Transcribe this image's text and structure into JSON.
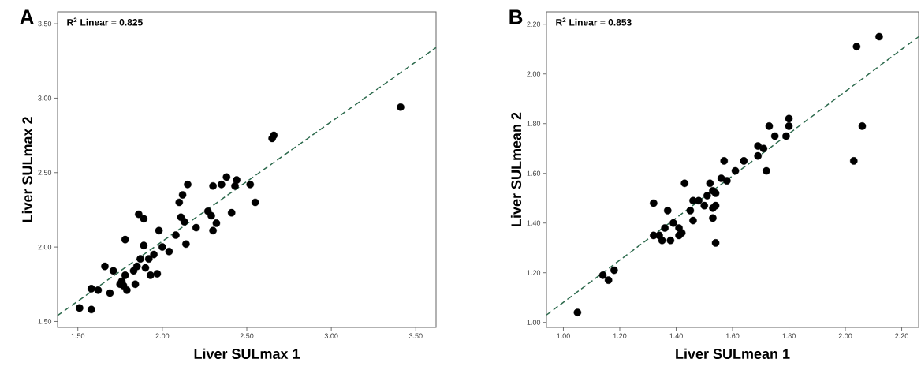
{
  "chart_data": [
    {
      "type": "scatter",
      "xlabel": "Liver  SULmax 1",
      "ylabel": "Liver  SULmax 2",
      "annotations": [
        "A",
        "R$^{2}$ Linear = 0.825"
      ],
      "xlim": [
        1.38,
        3.62
      ],
      "ylim": [
        1.46,
        3.58
      ],
      "xticks": [
        {
          "value": 1.5,
          "label": "1.50"
        },
        {
          "value": 2.0,
          "label": "2.00"
        },
        {
          "value": 2.5,
          "label": "2.50"
        },
        {
          "value": 3.0,
          "label": "3.00"
        },
        {
          "value": 3.5,
          "label": "3.50"
        }
      ],
      "yticks": [
        {
          "value": 1.5,
          "label": "1.50"
        },
        {
          "value": 2.0,
          "label": "2.00"
        },
        {
          "value": 2.5,
          "label": "2.50"
        },
        {
          "value": 3.0,
          "label": "3.00"
        },
        {
          "value": 3.5,
          "label": "3.50"
        }
      ],
      "series": [
        {
          "color": "#000000",
          "marker": "circle",
          "x": [
            1.51,
            1.58,
            1.58,
            1.62,
            1.66,
            1.69,
            1.71,
            1.75,
            1.76,
            1.77,
            1.78,
            1.78,
            1.79,
            1.83,
            1.84,
            1.85,
            1.86,
            1.87,
            1.89,
            1.89,
            1.9,
            1.92,
            1.93,
            1.95,
            1.97,
            1.98,
            2.0,
            2.04,
            2.08,
            2.1,
            2.11,
            2.12,
            2.13,
            2.14,
            2.15,
            2.2,
            2.27,
            2.29,
            2.3,
            2.3,
            2.32,
            2.35,
            2.38,
            2.41,
            2.43,
            2.44,
            2.52,
            2.55,
            2.65,
            2.66,
            3.41
          ],
          "values": [
            1.59,
            1.58,
            1.72,
            1.71,
            1.87,
            1.69,
            1.84,
            1.75,
            1.77,
            1.74,
            2.05,
            1.81,
            1.71,
            1.84,
            1.75,
            1.87,
            2.22,
            1.92,
            2.01,
            2.19,
            1.86,
            1.92,
            1.81,
            1.95,
            1.82,
            2.11,
            2.0,
            1.97,
            2.08,
            2.3,
            2.2,
            2.35,
            2.17,
            2.02,
            2.42,
            2.13,
            2.24,
            2.21,
            2.41,
            2.11,
            2.16,
            2.42,
            2.47,
            2.23,
            2.41,
            2.45,
            2.42,
            2.3,
            2.73,
            2.75,
            2.94
          ]
        },
        {
          "type": "line",
          "color": "#2e6b4e",
          "line_style": "dashed",
          "marker": "none",
          "x": [
            1.38,
            3.62
          ],
          "values": [
            1.54,
            3.34
          ]
        }
      ]
    },
    {
      "type": "scatter",
      "xlabel": "Liver  SULmean 1",
      "ylabel": "Liver  SULmean 2",
      "annotations": [
        "B",
        "R$^{2}$ Linear = 0.853"
      ],
      "xlim": [
        0.94,
        2.26
      ],
      "ylim": [
        0.98,
        2.25
      ],
      "xticks": [
        {
          "value": 1.0,
          "label": "1.00"
        },
        {
          "value": 1.2,
          "label": "1.20"
        },
        {
          "value": 1.4,
          "label": "1.40"
        },
        {
          "value": 1.6,
          "label": "1.60"
        },
        {
          "value": 1.8,
          "label": "1.80"
        },
        {
          "value": 2.0,
          "label": "2.00"
        },
        {
          "value": 2.2,
          "label": "2.20"
        }
      ],
      "yticks": [
        {
          "value": 1.0,
          "label": "1.00"
        },
        {
          "value": 1.2,
          "label": "1.20"
        },
        {
          "value": 1.4,
          "label": "1.40"
        },
        {
          "value": 1.6,
          "label": "1.60"
        },
        {
          "value": 1.8,
          "label": "1.80"
        },
        {
          "value": 2.0,
          "label": "2.00"
        },
        {
          "value": 2.2,
          "label": "2.20"
        }
      ],
      "series": [
        {
          "color": "#000000",
          "marker": "circle",
          "x": [
            1.05,
            1.14,
            1.16,
            1.18,
            1.32,
            1.32,
            1.34,
            1.35,
            1.36,
            1.37,
            1.38,
            1.39,
            1.41,
            1.41,
            1.42,
            1.43,
            1.45,
            1.46,
            1.46,
            1.48,
            1.5,
            1.51,
            1.52,
            1.53,
            1.53,
            1.53,
            1.54,
            1.54,
            1.54,
            1.56,
            1.57,
            1.58,
            1.61,
            1.64,
            1.69,
            1.69,
            1.71,
            1.72,
            1.73,
            1.75,
            1.79,
            1.8,
            1.8,
            2.03,
            2.04,
            2.06,
            2.12
          ],
          "values": [
            1.04,
            1.19,
            1.17,
            1.21,
            1.48,
            1.35,
            1.35,
            1.33,
            1.38,
            1.45,
            1.33,
            1.4,
            1.38,
            1.35,
            1.36,
            1.56,
            1.45,
            1.49,
            1.41,
            1.49,
            1.47,
            1.51,
            1.56,
            1.53,
            1.46,
            1.42,
            1.32,
            1.47,
            1.52,
            1.58,
            1.65,
            1.57,
            1.61,
            1.65,
            1.71,
            1.67,
            1.7,
            1.61,
            1.79,
            1.75,
            1.75,
            1.79,
            1.82,
            1.65,
            2.11,
            1.79,
            2.15
          ]
        },
        {
          "type": "line",
          "color": "#2e6b4e",
          "line_style": "dashed",
          "marker": "none",
          "x": [
            0.94,
            2.26
          ],
          "values": [
            1.03,
            2.15
          ]
        }
      ]
    }
  ]
}
